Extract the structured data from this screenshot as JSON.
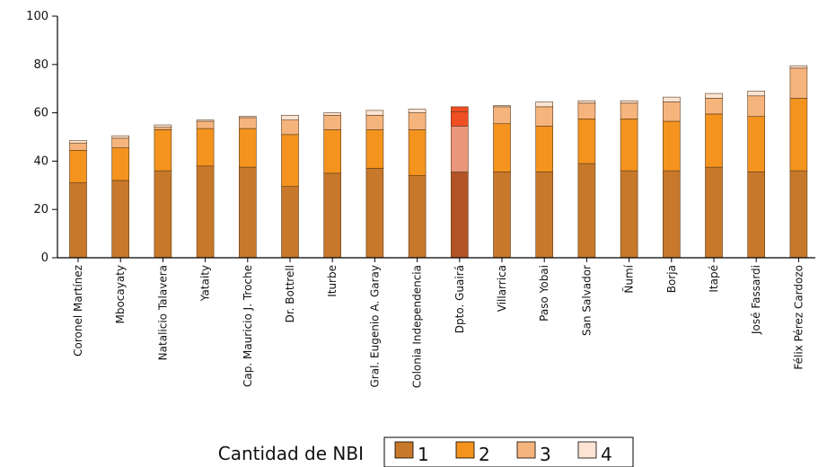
{
  "chart_data": {
    "type": "bar",
    "stacked": true,
    "categories": [
      "Coronel Martínez",
      "Mbocayaty",
      "Natalicio Talavera",
      "Yataity",
      "Cap. Mauricio J. Troche",
      "Dr. Bottrell",
      "Iturbe",
      "Gral. Eugenio A. Garay",
      "Colonia Independencia",
      "Dpto. Guairá",
      "Villarrica",
      "Paso Yobai",
      "San Salvador",
      "Ñumí",
      "Borja",
      "Itapé",
      "José Fassardi",
      "Félix Pérez Cardozo"
    ],
    "series": [
      {
        "name": "1",
        "color": "#C8782A",
        "values": [
          31,
          32,
          36,
          38,
          37.5,
          29.5,
          35,
          37,
          34,
          35.5,
          35.5,
          35.5,
          39,
          36,
          36,
          37.5,
          35.5,
          36
        ]
      },
      {
        "name": "2",
        "color": "#F4931E",
        "values": [
          13.5,
          13.5,
          17,
          15.5,
          16,
          21.5,
          18,
          16,
          19,
          19,
          20,
          19,
          18.5,
          21.5,
          20.5,
          22,
          23,
          30
        ]
      },
      {
        "name": "3",
        "color": "#F6B47D",
        "values": [
          3,
          4,
          1,
          3,
          4.5,
          6,
          6,
          6,
          7,
          6,
          7,
          8,
          6.5,
          6.5,
          8,
          6.5,
          8.5,
          12.5
        ]
      },
      {
        "name": "4",
        "color": "#FCE3D3",
        "values": [
          1,
          1,
          1,
          0.5,
          0.5,
          2,
          1,
          2,
          1.5,
          2,
          0.5,
          2,
          1,
          1,
          2,
          2,
          2,
          1
        ]
      }
    ],
    "highlight": {
      "category": "Dpto. Guairá",
      "colors": [
        "#B25427",
        "#E9967A",
        "#F04E23",
        "#F04E23"
      ]
    },
    "ylim": [
      0,
      100
    ],
    "yticks": [
      0,
      20,
      40,
      60,
      80,
      100
    ],
    "grid": false,
    "xlabel": "",
    "ylabel": "",
    "title": "",
    "legend_title": "Cantidad de NBI",
    "legend_position": "bottom"
  }
}
